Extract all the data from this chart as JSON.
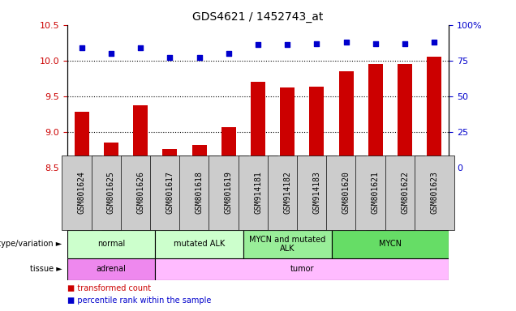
{
  "title": "GDS4621 / 1452743_at",
  "samples": [
    "GSM801624",
    "GSM801625",
    "GSM801626",
    "GSM801617",
    "GSM801618",
    "GSM801619",
    "GSM914181",
    "GSM914182",
    "GSM914183",
    "GSM801620",
    "GSM801621",
    "GSM801622",
    "GSM801623"
  ],
  "bar_values": [
    9.28,
    8.85,
    9.38,
    8.77,
    8.82,
    9.07,
    9.7,
    9.63,
    9.64,
    9.85,
    9.95,
    9.95,
    10.05
  ],
  "dot_values": [
    84,
    80,
    84,
    77,
    77,
    80,
    86,
    86,
    87,
    88,
    87,
    87,
    88
  ],
  "ylim_left": [
    8.5,
    10.5
  ],
  "ylim_right": [
    0,
    100
  ],
  "bar_color": "#cc0000",
  "dot_color": "#0000cc",
  "genotype_groups": [
    {
      "label": "normal",
      "start": 0,
      "end": 3,
      "color": "#ccffcc"
    },
    {
      "label": "mutated ALK",
      "start": 3,
      "end": 6,
      "color": "#ccffcc"
    },
    {
      "label": "MYCN and mutated\nALK",
      "start": 6,
      "end": 9,
      "color": "#99ee99"
    },
    {
      "label": "MYCN",
      "start": 9,
      "end": 13,
      "color": "#66dd66"
    }
  ],
  "tissue_groups": [
    {
      "label": "adrenal",
      "start": 0,
      "end": 3,
      "color": "#ee88ee"
    },
    {
      "label": "tumor",
      "start": 3,
      "end": 13,
      "color": "#ffbbff"
    }
  ],
  "left_yticks": [
    8.5,
    9.0,
    9.5,
    10.0,
    10.5
  ],
  "right_yticks": [
    0,
    25,
    50,
    75,
    100
  ],
  "right_yticklabels": [
    "0",
    "25",
    "50",
    "75",
    "100%"
  ],
  "dotted_lines": [
    9.0,
    9.5,
    10.0
  ],
  "legend_items": [
    {
      "label": "transformed count",
      "color": "#cc0000"
    },
    {
      "label": "percentile rank within the sample",
      "color": "#0000cc"
    }
  ],
  "row_label_genotype": "genotype/variation",
  "row_label_tissue": "tissue",
  "ticklabel_bg": "#cccccc"
}
